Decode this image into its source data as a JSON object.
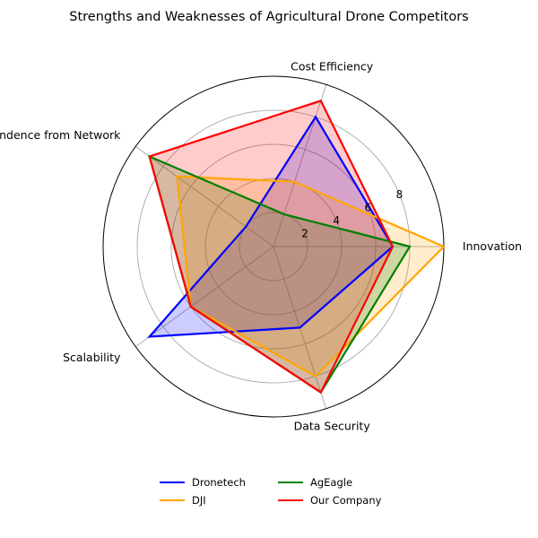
{
  "chart_data": {
    "type": "radar",
    "title": "Strengths and Weaknesses of Agricultural Drone Competitors",
    "categories": [
      "Innovation",
      "Cost Efficiency",
      "Independence from Network",
      "Scalability",
      "Data Security"
    ],
    "rmax": 10,
    "radial_ticks": [
      2,
      4,
      6,
      8
    ],
    "grid": true,
    "legend_position": "bottom",
    "series": [
      {
        "name": "Dronetech",
        "color": "#0000ff",
        "values": [
          7,
          8,
          2,
          9,
          5
        ]
      },
      {
        "name": "DJI",
        "color": "#ffa500",
        "values": [
          10,
          4,
          7,
          6,
          8
        ]
      },
      {
        "name": "AgEagle",
        "color": "#008000",
        "values": [
          8,
          2,
          9,
          6,
          9
        ]
      },
      {
        "name": "Our Company",
        "color": "#ff0000",
        "values": [
          7,
          9,
          9,
          6,
          9
        ]
      }
    ]
  }
}
